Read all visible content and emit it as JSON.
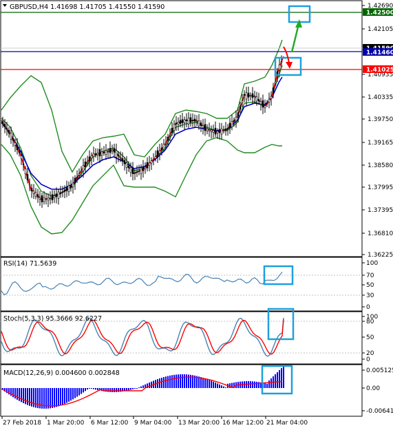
{
  "main": {
    "title": "GBPUSD,H4  1.41698 1.41705 1.41550 1.41590",
    "axis_ticks": [
      "1.42690",
      "1.42105",
      "1.41590",
      "1.40935",
      "1.40335",
      "1.39750",
      "1.39165",
      "1.38580",
      "1.37995",
      "1.37395",
      "1.36810",
      "1.36225"
    ],
    "price_tags": [
      {
        "text": "1.42500",
        "line_color": "#006400",
        "tag_color": "#006400"
      },
      {
        "text": "1.41590",
        "line_color": "#d0d0d0",
        "tag_color": "#000000"
      },
      {
        "text": "1.41460",
        "line_color": "#0000aa",
        "tag_color": "#0000aa"
      },
      {
        "text": "1.41025",
        "line_color": "#ff0000",
        "tag_color": "#ff0000"
      }
    ]
  },
  "rsi": {
    "title": "RSI(14) 71.5639",
    "axis_ticks": [
      "100",
      "70",
      "50",
      "30",
      "0"
    ]
  },
  "stoch": {
    "title": "Stoch(5,3,3) 95.3666 92.6227",
    "axis_ticks": [
      "100",
      "80",
      "50",
      "20",
      "0"
    ]
  },
  "macd": {
    "title": "MACD(12,26,9) 0.004600 0.002848",
    "axis_ticks": [
      "0.005125",
      "0.00",
      "-0.006417"
    ]
  },
  "time_axis": [
    "27 Feb 2018",
    "1 Mar 20:00",
    "6 Mar 12:00",
    "9 Mar 04:00",
    "13 Mar 20:00",
    "16 Mar 12:00",
    "21 Mar 04:00"
  ],
  "colors": {
    "bollinger": "#228b22",
    "ma_fast": "#ff0000",
    "ma_slow": "#0000cc",
    "candles": "#000000",
    "rsi_line": "#4682b4",
    "stoch_main": "#4682b4",
    "stoch_signal": "#ff0000",
    "macd_hist": "#0000ff",
    "macd_signal": "#ff0000",
    "highlight_box": "#1ea0dc",
    "arrow_up": "#22aa22",
    "arrow_down": "#ff0000"
  }
}
